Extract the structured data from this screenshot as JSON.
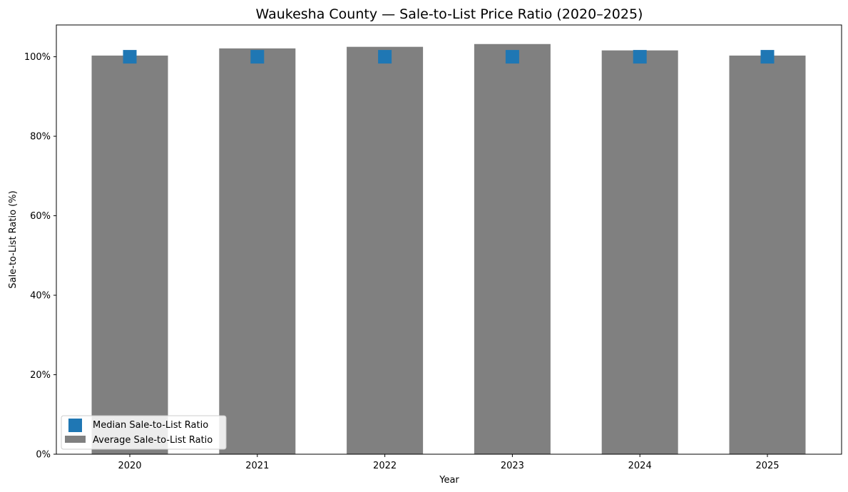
{
  "chart_data": {
    "type": "bar",
    "title": "Waukesha County — Sale-to-List Price Ratio (2020–2025)",
    "xlabel": "Year",
    "ylabel": "Sale-to-List Ratio (%)",
    "categories": [
      "2020",
      "2021",
      "2022",
      "2023",
      "2024",
      "2025"
    ],
    "ylim": [
      0,
      108
    ],
    "yticks": [
      0,
      20,
      40,
      60,
      80,
      100
    ],
    "ytick_labels": [
      "0%",
      "20%",
      "40%",
      "60%",
      "80%",
      "100%"
    ],
    "grid": false,
    "legend_position": "lower-left",
    "series": [
      {
        "name": "Average Sale-to-List Ratio",
        "kind": "bar",
        "color": "#808080",
        "values": [
          100.3,
          102.1,
          102.5,
          103.2,
          101.6,
          100.3
        ]
      },
      {
        "name": "Median Sale-to-List Ratio",
        "kind": "marker-square",
        "color": "#1f77b4",
        "values": [
          100.0,
          100.0,
          100.0,
          100.0,
          100.0,
          100.0
        ]
      }
    ]
  }
}
